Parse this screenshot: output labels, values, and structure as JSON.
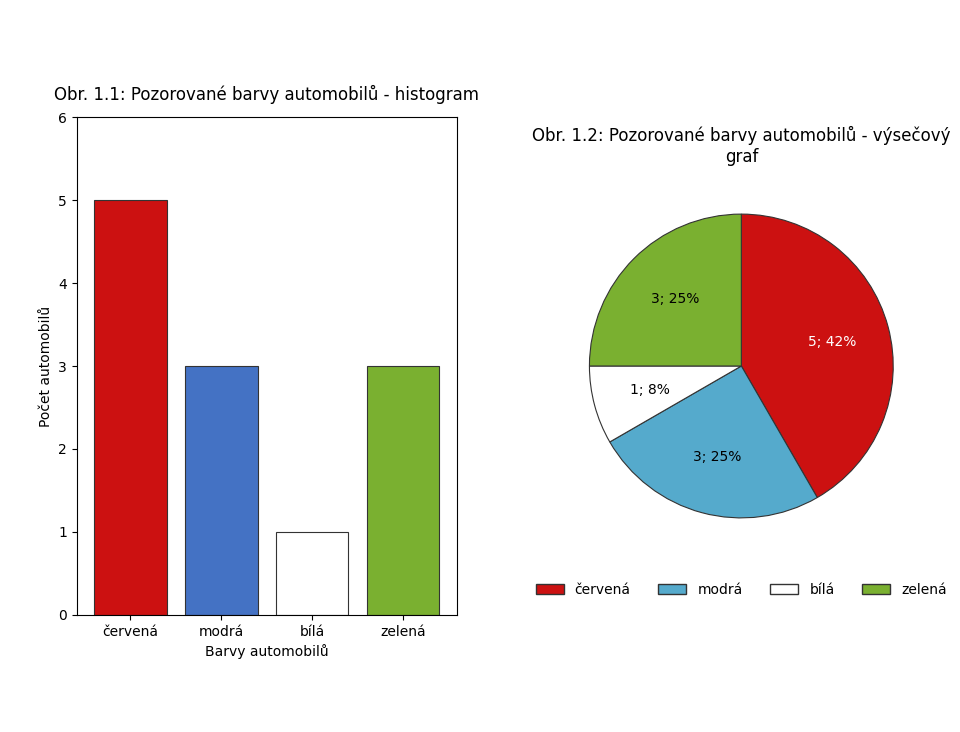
{
  "chart_data": [
    {
      "type": "bar",
      "title": "Obr. 1.1: Pozorované barvy automobilů - histogram",
      "xlabel": "Barvy automobilů",
      "ylabel": "Počet automobilů",
      "categories": [
        "červená",
        "modrá",
        "bílá",
        "zelená"
      ],
      "values": [
        5,
        3,
        1,
        3
      ],
      "colors": [
        "#cc1111",
        "#4472c4",
        "#ffffff",
        "#7ab030"
      ],
      "ylim": [
        0,
        6
      ],
      "yticks": [
        0,
        1,
        2,
        3,
        4,
        5,
        6
      ],
      "grid": false
    },
    {
      "type": "pie",
      "title": "Obr. 1.2: Pozorované barvy automobilů - výsečový graf",
      "categories": [
        "červená",
        "modrá",
        "bílá",
        "zelená"
      ],
      "values": [
        5,
        3,
        1,
        3
      ],
      "value_labels": [
        "5; 42%",
        "3; 25%",
        "1; 8%",
        "3; 25%"
      ],
      "colors": [
        "#cc1111",
        "#55aacc",
        "#ffffff",
        "#7ab030"
      ],
      "data_labels": true,
      "legend": "lower center"
    }
  ]
}
